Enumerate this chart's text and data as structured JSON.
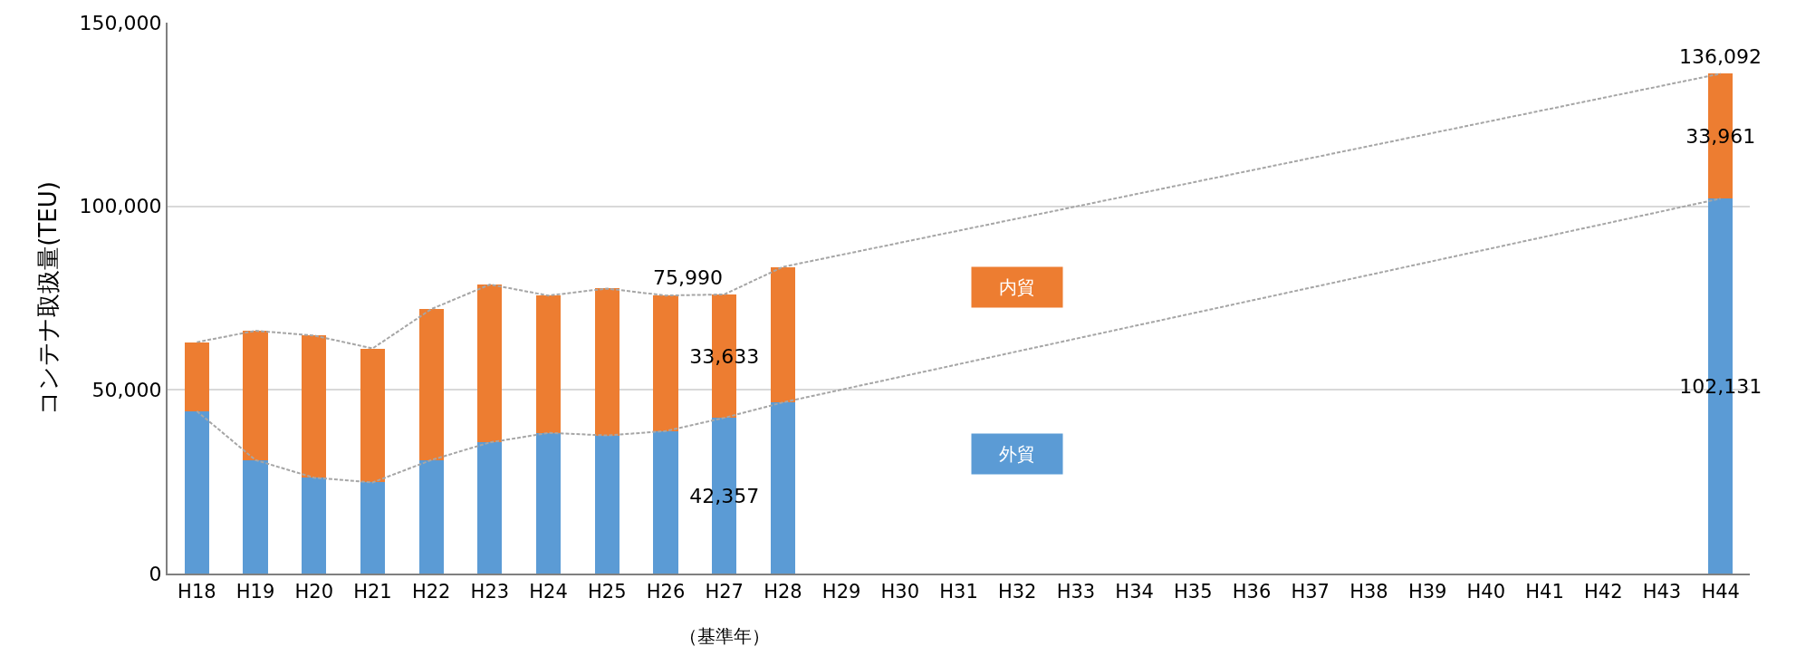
{
  "chart_data": {
    "type": "bar",
    "stacked": true,
    "ylabel": "コンテナ取扱量(TEU)",
    "categories": [
      "H18",
      "H19",
      "H20",
      "H21",
      "H22",
      "H23",
      "H24",
      "H25",
      "H26",
      "H27",
      "H28",
      "H29",
      "H30",
      "H31",
      "H32",
      "H33",
      "H34",
      "H35",
      "H36",
      "H37",
      "H38",
      "H39",
      "H40",
      "H41",
      "H42",
      "H43",
      "H44"
    ],
    "series": [
      {
        "name": "外貿",
        "color": "#5b9bd5",
        "values": [
          44200,
          30900,
          26100,
          24800,
          30900,
          35700,
          38300,
          37600,
          38800,
          42357,
          46600,
          null,
          null,
          null,
          null,
          null,
          null,
          null,
          null,
          null,
          null,
          null,
          null,
          null,
          null,
          null,
          102131
        ],
        "value_labels": [
          null,
          null,
          null,
          null,
          null,
          null,
          null,
          null,
          null,
          "42,357",
          null,
          null,
          null,
          null,
          null,
          null,
          null,
          null,
          null,
          null,
          null,
          null,
          null,
          null,
          null,
          null,
          "102,131"
        ]
      },
      {
        "name": "内貿",
        "color": "#ed7d31",
        "values": [
          18800,
          35200,
          38700,
          36500,
          41100,
          43000,
          37400,
          40000,
          36900,
          33633,
          36900,
          null,
          null,
          null,
          null,
          null,
          null,
          null,
          null,
          null,
          null,
          null,
          null,
          null,
          null,
          null,
          33961
        ],
        "value_labels": [
          null,
          null,
          null,
          null,
          null,
          null,
          null,
          null,
          null,
          "33,633",
          null,
          null,
          null,
          null,
          null,
          null,
          null,
          null,
          null,
          null,
          null,
          null,
          null,
          null,
          null,
          null,
          "33,961"
        ]
      },
      {
        "type": "line",
        "color": "#a6a6a6",
        "line_style": "dashed",
        "values": [
          44200,
          30900,
          26100,
          24800,
          30900,
          35700,
          38300,
          37600,
          38800,
          42400,
          46600,
          null,
          null,
          null,
          null,
          null,
          null,
          null,
          null,
          null,
          null,
          null,
          null,
          null,
          null,
          null,
          102100
        ]
      },
      {
        "type": "line",
        "color": "#a6a6a6",
        "line_style": "dashed",
        "values": [
          63000,
          66100,
          64800,
          61300,
          72000,
          78700,
          75700,
          77600,
          75700,
          76000,
          83500,
          null,
          null,
          null,
          null,
          null,
          null,
          null,
          null,
          null,
          null,
          null,
          null,
          null,
          null,
          null,
          136100
        ]
      }
    ],
    "totals": [
      null,
      null,
      null,
      null,
      null,
      null,
      null,
      null,
      null,
      "75,990",
      null,
      null,
      null,
      null,
      null,
      null,
      null,
      null,
      null,
      null,
      null,
      null,
      null,
      null,
      null,
      null,
      "136,092"
    ],
    "annotations": [
      "（基準年）"
    ],
    "ylim": [
      0,
      150000
    ],
    "yticks": [
      {
        "value": 0,
        "label": "0"
      },
      {
        "value": 50000,
        "label": "50,000"
      },
      {
        "value": 100000,
        "label": "100,000"
      },
      {
        "value": 150000,
        "label": "150,000"
      }
    ],
    "grid": "y",
    "legend": false
  }
}
